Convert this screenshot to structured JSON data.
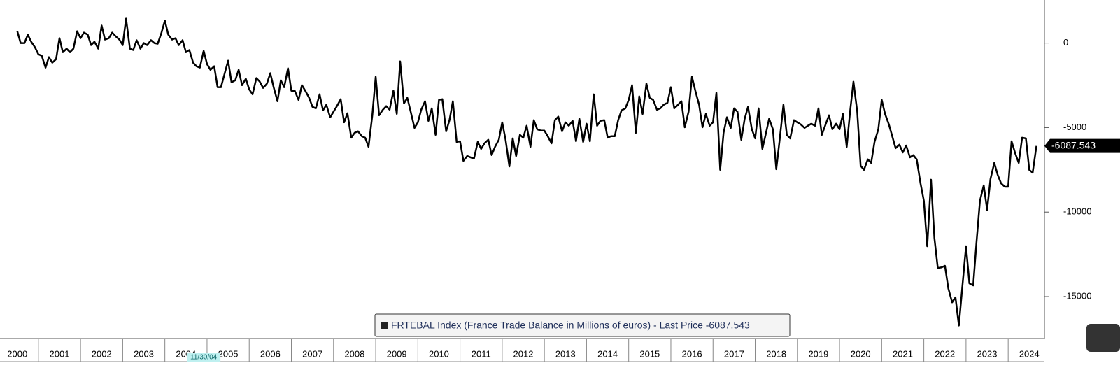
{
  "chart_data": {
    "type": "line",
    "x": [
      2000.5,
      2000.58,
      2000.67,
      2000.75,
      2000.83,
      2000.92,
      2001,
      2001.08,
      2001.17,
      2001.25,
      2001.33,
      2001.42,
      2001.5,
      2001.58,
      2001.67,
      2001.75,
      2001.83,
      2001.92,
      2002,
      2002.08,
      2002.17,
      2002.25,
      2002.33,
      2002.42,
      2002.5,
      2002.58,
      2002.67,
      2002.75,
      2002.83,
      2002.92,
      2003,
      2003.08,
      2003.17,
      2003.25,
      2003.33,
      2003.42,
      2003.5,
      2003.58,
      2003.67,
      2003.75,
      2003.83,
      2003.92,
      2004,
      2004.08,
      2004.17,
      2004.25,
      2004.33,
      2004.42,
      2004.5,
      2004.58,
      2004.67,
      2004.75,
      2004.83,
      2004.92,
      2005,
      2005.08,
      2005.17,
      2005.25,
      2005.33,
      2005.42,
      2005.5,
      2005.58,
      2005.67,
      2005.75,
      2005.83,
      2005.92,
      2006,
      2006.08,
      2006.17,
      2006.25,
      2006.33,
      2006.42,
      2006.5,
      2006.58,
      2006.67,
      2006.75,
      2006.83,
      2006.92,
      2007,
      2007.08,
      2007.17,
      2007.25,
      2007.33,
      2007.42,
      2007.5,
      2007.58,
      2007.67,
      2007.75,
      2007.83,
      2007.92,
      2008,
      2008.08,
      2008.17,
      2008.25,
      2008.33,
      2008.42,
      2008.5,
      2008.58,
      2008.67,
      2008.75,
      2008.83,
      2008.92,
      2009,
      2009.08,
      2009.17,
      2009.25,
      2009.33,
      2009.42,
      2009.5,
      2009.58,
      2009.67,
      2009.75,
      2009.83,
      2009.92,
      2010,
      2010.08,
      2010.17,
      2010.25,
      2010.33,
      2010.42,
      2010.5,
      2010.58,
      2010.67,
      2010.75,
      2010.83,
      2010.92,
      2011,
      2011.08,
      2011.17,
      2011.25,
      2011.33,
      2011.42,
      2011.5,
      2011.58,
      2011.67,
      2011.75,
      2011.83,
      2011.92,
      2012,
      2012.08,
      2012.17,
      2012.25,
      2012.33,
      2012.42,
      2012.5,
      2012.58,
      2012.67,
      2012.75,
      2012.83,
      2012.92,
      2013,
      2013.08,
      2013.17,
      2013.25,
      2013.33,
      2013.42,
      2013.5,
      2013.58,
      2013.67,
      2013.75,
      2013.83,
      2013.92,
      2014,
      2014.08,
      2014.17,
      2014.25,
      2014.33,
      2014.42,
      2014.5,
      2014.58,
      2014.67,
      2014.75,
      2014.83,
      2014.92,
      2015,
      2015.08,
      2015.17,
      2015.25,
      2015.33,
      2015.42,
      2015.5,
      2015.58,
      2015.67,
      2015.75,
      2015.83,
      2015.92,
      2016,
      2016.08,
      2016.17,
      2016.25,
      2016.33,
      2016.42,
      2016.5,
      2016.58,
      2016.67,
      2016.75,
      2016.83,
      2016.92,
      2017,
      2017.08,
      2017.17,
      2017.25,
      2017.33,
      2017.42,
      2017.5,
      2017.58,
      2017.67,
      2017.75,
      2017.83,
      2017.92,
      2018,
      2018.08,
      2018.17,
      2018.25,
      2018.33,
      2018.42,
      2018.5,
      2018.58,
      2018.67,
      2018.75,
      2018.83,
      2018.92,
      2019,
      2019.08,
      2019.17,
      2019.25,
      2019.33,
      2019.42,
      2019.5,
      2019.58,
      2019.67,
      2019.75,
      2019.83,
      2019.92,
      2020,
      2020.08,
      2020.17,
      2020.25,
      2020.33,
      2020.42,
      2020.5,
      2020.58,
      2020.67,
      2020.75,
      2020.83,
      2020.92,
      2021,
      2021.08,
      2021.17,
      2021.25,
      2021.33,
      2021.42,
      2021.5,
      2021.58,
      2021.67,
      2021.75,
      2021.83,
      2021.92,
      2022,
      2022.08,
      2022.17,
      2022.25,
      2022.33,
      2022.42,
      2022.5,
      2022.58,
      2022.67,
      2022.75,
      2022.83,
      2022.92,
      2023,
      2023.08,
      2023.17,
      2023.25,
      2023.33,
      2023.42,
      2023.5,
      2023.58,
      2023.67,
      2023.75,
      2023.83,
      2023.92,
      2024,
      2024.08,
      2024.17,
      2024.25,
      2024.33,
      2024.42,
      2024.5,
      2024.58,
      2024.67
    ],
    "series": [
      {
        "name": "FRTEBAL Index (France Trade Balance in Millions of euros) - Last Price -6087.543",
        "color": "#000000",
        "values": [
          705,
          0,
          0,
          500,
          80,
          -250,
          -660,
          -750,
          -1450,
          -830,
          -1160,
          -950,
          290,
          -540,
          -330,
          -540,
          -330,
          700,
          290,
          620,
          500,
          -120,
          80,
          -330,
          1040,
          210,
          290,
          620,
          410,
          210,
          -120,
          1450,
          -330,
          -410,
          170,
          -330,
          0,
          -120,
          170,
          0,
          -40,
          620,
          1330,
          500,
          210,
          290,
          -120,
          170,
          -540,
          -410,
          -1160,
          -1370,
          -1450,
          -460,
          -1240,
          -1580,
          -1370,
          -2610,
          -2610,
          -1780,
          -1040,
          -2320,
          -2200,
          -1580,
          -2490,
          -2110,
          -2740,
          -3030,
          -2070,
          -2280,
          -2650,
          -2400,
          -1780,
          -2610,
          -3440,
          -2200,
          -2610,
          -1490,
          -2820,
          -2820,
          -3360,
          -2490,
          -2820,
          -3230,
          -3770,
          -3860,
          -3030,
          -3980,
          -3650,
          -4390,
          -4060,
          -3730,
          -3320,
          -4690,
          -4150,
          -5600,
          -5310,
          -5220,
          -5510,
          -5600,
          -6140,
          -4270,
          -1990,
          -4270,
          -3940,
          -3730,
          -3940,
          -2820,
          -4190,
          -1080,
          -3570,
          -3240,
          -4060,
          -5020,
          -4690,
          -3940,
          -3440,
          -4600,
          -3860,
          -5430,
          -3360,
          -3320,
          -5220,
          -4560,
          -3440,
          -5850,
          -5810,
          -6970,
          -6680,
          -6760,
          -6840,
          -5850,
          -6260,
          -5930,
          -5720,
          -6630,
          -6140,
          -5720,
          -4690,
          -5720,
          -7300,
          -5640,
          -6680,
          -5430,
          -5600,
          -4890,
          -6140,
          -4560,
          -5100,
          -5180,
          -5180,
          -5510,
          -5930,
          -4560,
          -4350,
          -5220,
          -4690,
          -4890,
          -4600,
          -5810,
          -4480,
          -5850,
          -4770,
          -5810,
          -3030,
          -4890,
          -4600,
          -4560,
          -5600,
          -5510,
          -5510,
          -4560,
          -3980,
          -3860,
          -3360,
          -2490,
          -5310,
          -3150,
          -4190,
          -2400,
          -3240,
          -3360,
          -3940,
          -3860,
          -3650,
          -3530,
          -2610,
          -3860,
          -3650,
          -3440,
          -4980,
          -4060,
          -1990,
          -2820,
          -3650,
          -4980,
          -4190,
          -4890,
          -4690,
          -2940,
          -7500,
          -5310,
          -4390,
          -5020,
          -3860,
          -4060,
          -5720,
          -4480,
          -3770,
          -5100,
          -5640,
          -3860,
          -6260,
          -5390,
          -4480,
          -5100,
          -7460,
          -5720,
          -3650,
          -5430,
          -5640,
          -4560,
          -4690,
          -4810,
          -5020,
          -4890,
          -4770,
          -4890,
          -3860,
          -5430,
          -4810,
          -4270,
          -5100,
          -4770,
          -5100,
          -4190,
          -6140,
          -4060,
          -2280,
          -4060,
          -7260,
          -7500,
          -6880,
          -7090,
          -5850,
          -5100,
          -3360,
          -4190,
          -4810,
          -5510,
          -6220,
          -6010,
          -6470,
          -6060,
          -6760,
          -6630,
          -6880,
          -8290,
          -9330,
          -12020,
          -8080,
          -11530,
          -13310,
          -13270,
          -13180,
          -14510,
          -15340,
          -15050,
          -16710,
          -14220,
          -12020,
          -14220,
          -14340,
          -11730,
          -9330,
          -8420,
          -9870,
          -8040,
          -7090,
          -7790,
          -8290,
          -8500,
          -8500,
          -5810,
          -6550,
          -7090,
          -5600,
          -5640,
          -7500,
          -7670,
          -6087.543
        ]
      }
    ],
    "xlim": [
      2000.09,
      2024.86
    ],
    "xticks": [
      2000,
      2001,
      2002,
      2003,
      2004,
      2005,
      2006,
      2007,
      2008,
      2009,
      2010,
      2011,
      2012,
      2013,
      2014,
      2015,
      2016,
      2017,
      2018,
      2019,
      2020,
      2021,
      2022,
      2023,
      2024
    ],
    "ylim": [
      -17400,
      2550
    ],
    "yticks": [
      0,
      -5000,
      -10000,
      -15000
    ],
    "cursor_label": "11/30/04",
    "grid": false
  }
}
